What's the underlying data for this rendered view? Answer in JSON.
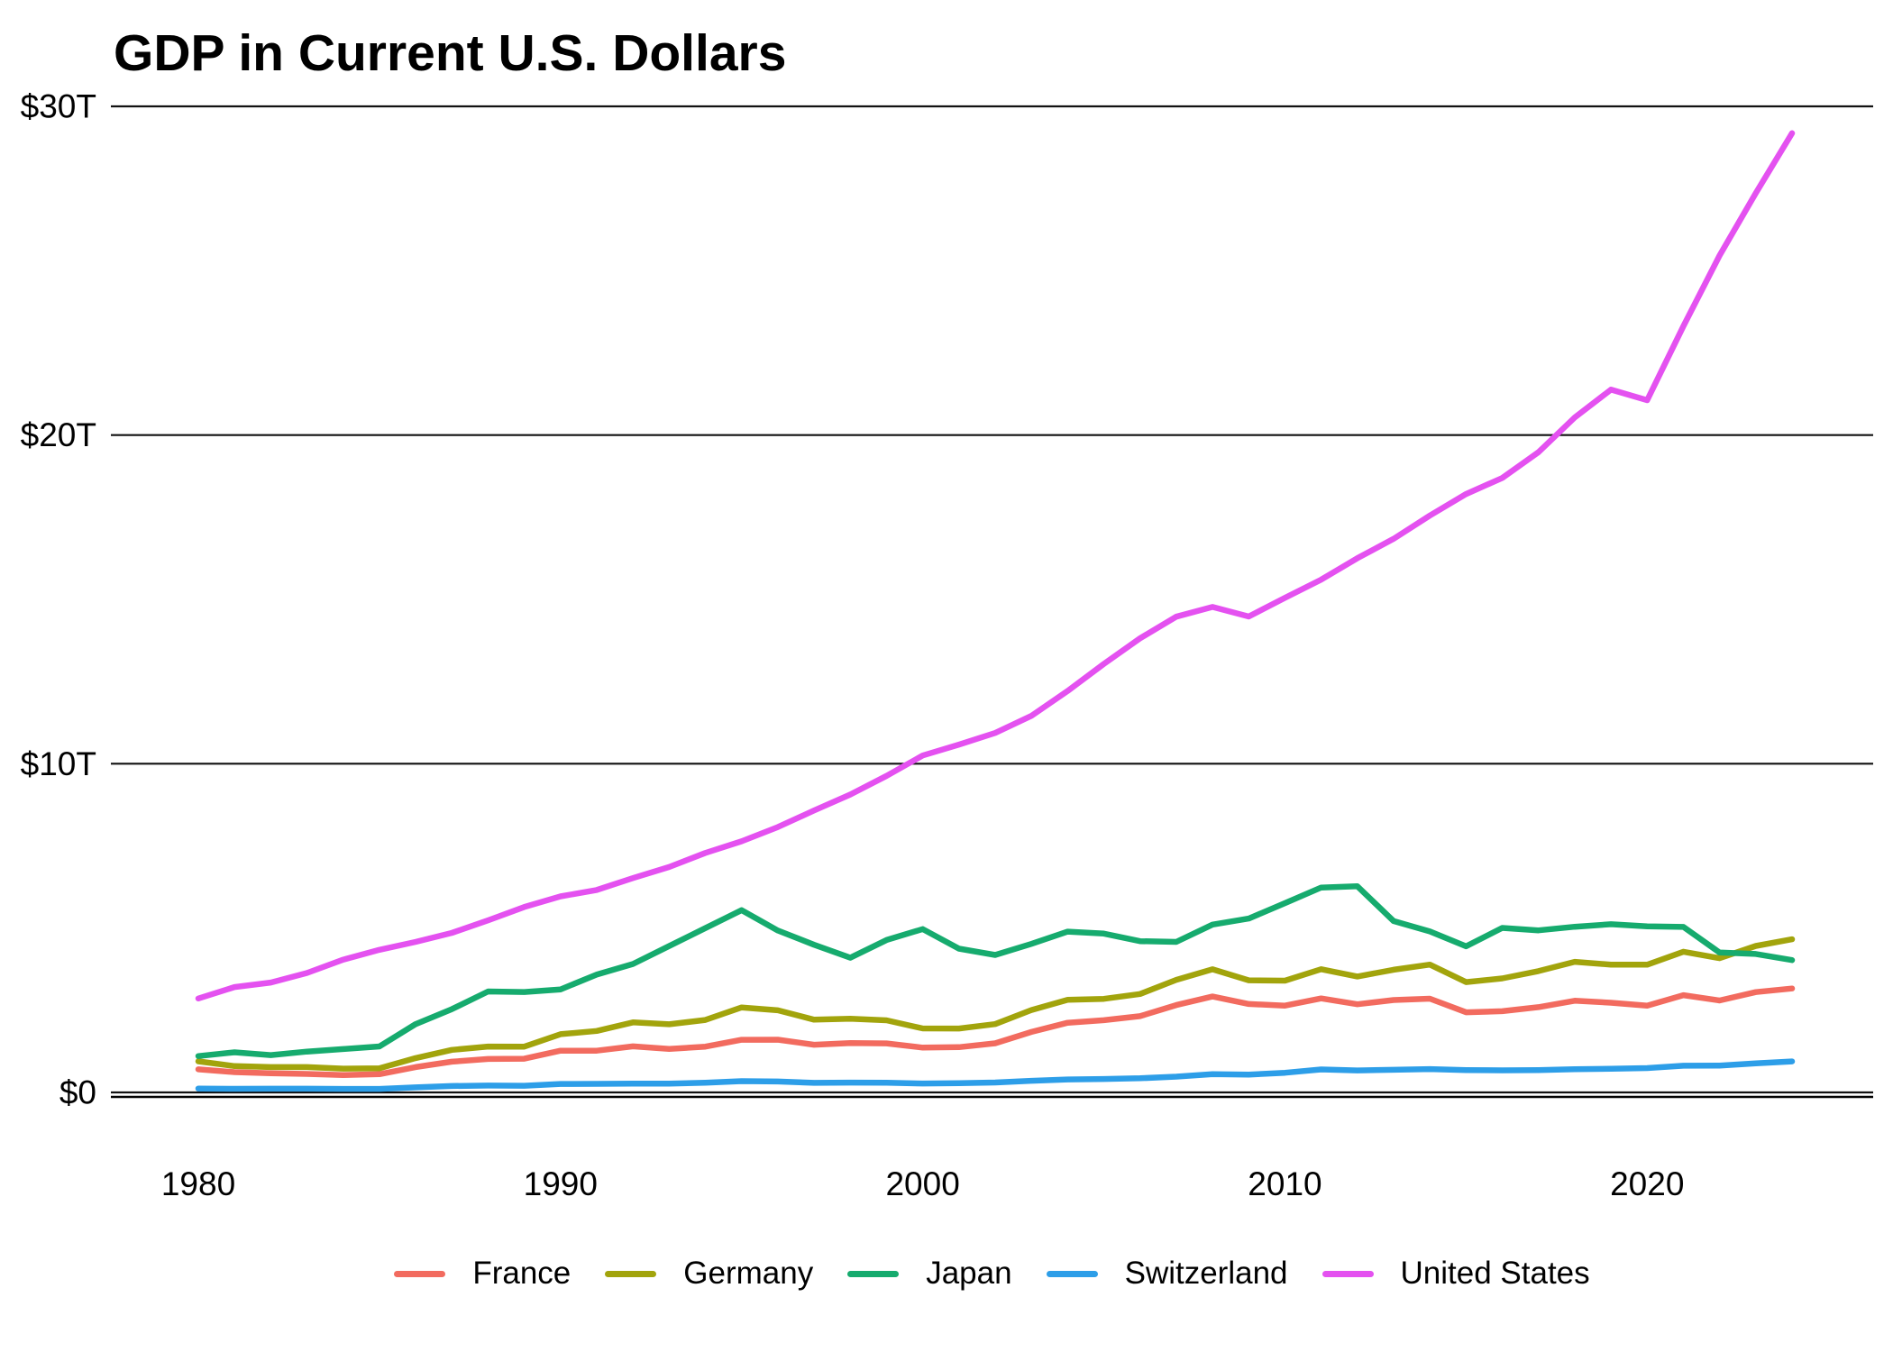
{
  "chart_data": {
    "type": "line",
    "title": "GDP in Current U.S. Dollars",
    "xlabel": "",
    "ylabel": "",
    "y_unit": "trillions of current U.S. dollars",
    "ylim": [
      0,
      30
    ],
    "grid": "horizontal",
    "legend_position": "bottom",
    "x": [
      1980,
      1981,
      1982,
      1983,
      1984,
      1985,
      1986,
      1987,
      1988,
      1989,
      1990,
      1991,
      1992,
      1993,
      1994,
      1995,
      1996,
      1997,
      1998,
      1999,
      2000,
      2001,
      2002,
      2003,
      2004,
      2005,
      2006,
      2007,
      2008,
      2009,
      2010,
      2011,
      2012,
      2013,
      2014,
      2015,
      2016,
      2017,
      2018,
      2019,
      2020,
      2021,
      2022,
      2023,
      2024
    ],
    "x_ticks": [
      {
        "value": 1980,
        "label": "1980"
      },
      {
        "value": 1990,
        "label": "1990"
      },
      {
        "value": 2000,
        "label": "2000"
      },
      {
        "value": 2010,
        "label": "2010"
      },
      {
        "value": 2020,
        "label": "2020"
      }
    ],
    "y_ticks": [
      {
        "value": 0,
        "label": "$0"
      },
      {
        "value": 10,
        "label": "$10T"
      },
      {
        "value": 20,
        "label": "$20T"
      },
      {
        "value": 30,
        "label": "$30T"
      }
    ],
    "series": [
      {
        "name": "France",
        "color": "#F26B5F",
        "values": [
          0.701,
          0.616,
          0.584,
          0.561,
          0.53,
          0.553,
          0.771,
          0.934,
          1.018,
          1.025,
          1.269,
          1.269,
          1.401,
          1.322,
          1.394,
          1.601,
          1.605,
          1.452,
          1.503,
          1.492,
          1.362,
          1.377,
          1.494,
          1.84,
          2.119,
          2.196,
          2.32,
          2.657,
          2.918,
          2.69,
          2.642,
          2.861,
          2.683,
          2.811,
          2.852,
          2.439,
          2.472,
          2.595,
          2.79,
          2.729,
          2.639,
          2.959,
          2.796,
          3.052,
          3.162
        ]
      },
      {
        "name": "Germany",
        "color": "#A2A40C",
        "values": [
          0.947,
          0.8,
          0.771,
          0.77,
          0.723,
          0.732,
          1.044,
          1.294,
          1.395,
          1.393,
          1.772,
          1.869,
          2.132,
          2.072,
          2.206,
          2.585,
          2.498,
          2.213,
          2.24,
          2.194,
          1.948,
          1.945,
          2.079,
          2.506,
          2.819,
          2.846,
          2.994,
          3.425,
          3.745,
          3.411,
          3.399,
          3.749,
          3.527,
          3.733,
          3.889,
          3.357,
          3.469,
          3.69,
          3.974,
          3.889,
          3.887,
          4.281,
          4.082,
          4.456,
          4.66
        ]
      },
      {
        "name": "Japan",
        "color": "#16AB6E",
        "values": [
          1.105,
          1.219,
          1.134,
          1.243,
          1.318,
          1.398,
          2.079,
          2.533,
          3.072,
          3.054,
          3.133,
          3.584,
          3.908,
          4.454,
          4.998,
          5.546,
          4.924,
          4.492,
          4.098,
          4.636,
          4.968,
          4.374,
          4.182,
          4.519,
          4.893,
          4.831,
          4.601,
          4.579,
          5.106,
          5.289,
          5.759,
          6.233,
          6.272,
          5.212,
          4.897,
          4.444,
          5.004,
          4.931,
          5.041,
          5.118,
          5.055,
          5.034,
          4.256,
          4.213,
          4.026
        ]
      },
      {
        "name": "Switzerland",
        "color": "#2D9EE8",
        "values": [
          0.118,
          0.111,
          0.113,
          0.112,
          0.107,
          0.108,
          0.153,
          0.194,
          0.208,
          0.202,
          0.258,
          0.261,
          0.27,
          0.265,
          0.293,
          0.342,
          0.331,
          0.29,
          0.299,
          0.293,
          0.272,
          0.282,
          0.302,
          0.353,
          0.395,
          0.409,
          0.431,
          0.48,
          0.554,
          0.542,
          0.598,
          0.7,
          0.668,
          0.689,
          0.71,
          0.68,
          0.671,
          0.681,
          0.706,
          0.722,
          0.74,
          0.813,
          0.818,
          0.885,
          0.942
        ]
      },
      {
        "name": "United States",
        "color": "#E451F0",
        "values": [
          2.857,
          3.207,
          3.344,
          3.634,
          4.038,
          4.339,
          4.58,
          4.855,
          5.236,
          5.642,
          5.963,
          6.158,
          6.52,
          6.859,
          7.287,
          7.64,
          8.073,
          8.578,
          9.063,
          9.631,
          10.251,
          10.582,
          10.936,
          11.458,
          12.214,
          13.037,
          13.815,
          14.474,
          14.769,
          14.478,
          15.049,
          15.6,
          16.254,
          16.843,
          17.551,
          18.206,
          18.695,
          19.477,
          20.533,
          21.381,
          21.06,
          23.315,
          25.462,
          27.361,
          29.184
        ]
      }
    ]
  }
}
